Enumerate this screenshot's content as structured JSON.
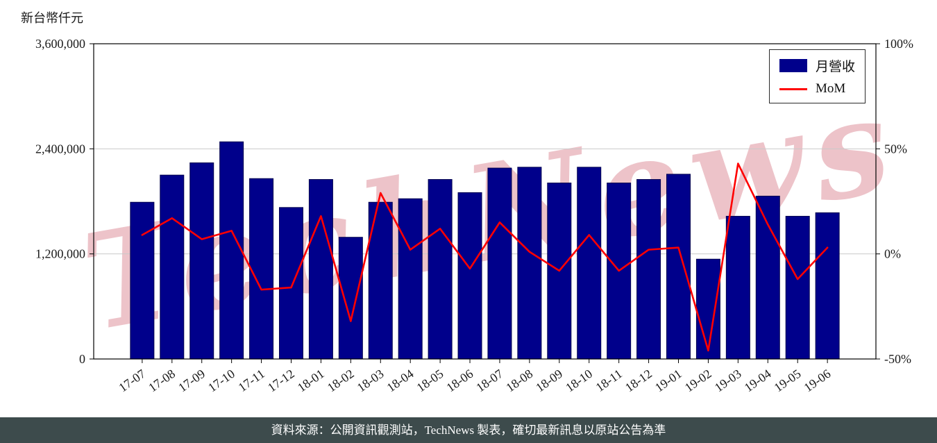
{
  "watermark": "TechNews",
  "footer": "資料來源：公開資訊觀測站，TechNews 製表，確切最新訊息以原站公告為準",
  "chart_data": {
    "type": "bar",
    "categories": [
      "17-07",
      "17-08",
      "17-09",
      "17-10",
      "17-11",
      "17-12",
      "18-01",
      "18-02",
      "18-03",
      "18-04",
      "18-05",
      "18-06",
      "18-07",
      "18-08",
      "18-09",
      "18-10",
      "18-11",
      "18-12",
      "19-01",
      "19-02",
      "19-03",
      "19-04",
      "19-05",
      "19-06"
    ],
    "series": [
      {
        "name": "月營收",
        "type": "bar",
        "axis": "left",
        "color": "#00008b",
        "values": [
          1790000,
          2100000,
          2240000,
          2480000,
          2060000,
          1730000,
          2050000,
          1390000,
          1790000,
          1830000,
          2050000,
          1900000,
          2180000,
          2190000,
          2010000,
          2190000,
          2010000,
          2050000,
          2110000,
          1140000,
          1630000,
          1860000,
          1630000,
          1670000
        ]
      },
      {
        "name": "MoM",
        "type": "line",
        "axis": "right",
        "color": "#ff0000",
        "values": [
          9,
          17,
          7,
          11,
          -17,
          -16,
          18,
          -32,
          29,
          2,
          12,
          -7,
          15,
          1,
          -8,
          9,
          -8,
          2,
          3,
          -46,
          43,
          14,
          -12,
          3
        ]
      }
    ],
    "left_axis": {
      "title": "新台幣仟元",
      "min": 0,
      "max": 3600000,
      "ticks": [
        {
          "value": 0,
          "label": "0"
        },
        {
          "value": 1200000,
          "label": "1,200,000"
        },
        {
          "value": 2400000,
          "label": "2,400,000"
        },
        {
          "value": 3600000,
          "label": "3,600,000"
        }
      ]
    },
    "right_axis": {
      "min": -50,
      "max": 100,
      "ticks": [
        {
          "value": -50,
          "label": "-50%"
        },
        {
          "value": 0,
          "label": "0%"
        },
        {
          "value": 50,
          "label": "50%"
        },
        {
          "value": 100,
          "label": "100%"
        }
      ]
    },
    "grid": "horizontal",
    "legend_position": "top-right"
  }
}
